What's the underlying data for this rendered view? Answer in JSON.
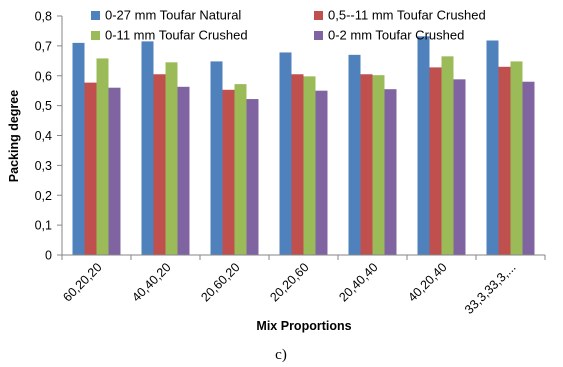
{
  "chart_data": {
    "type": "bar",
    "categories": [
      "60,20,20",
      "40,40,20",
      "20,60,20",
      "20,20,60",
      "20,40,40",
      "40,20,40",
      "33,3,33,3,..."
    ],
    "series": [
      {
        "name": "0-27 mm Toufar Natural",
        "color": "#4F81BD",
        "values": [
          0.71,
          0.715,
          0.648,
          0.678,
          0.67,
          0.732,
          0.718
        ]
      },
      {
        "name": "0,5--11 mm Toufar Crushed",
        "color": "#C0504D",
        "values": [
          0.577,
          0.605,
          0.553,
          0.605,
          0.605,
          0.628,
          0.63
        ]
      },
      {
        "name": "0-11 mm Toufar Crushed",
        "color": "#9BBB59",
        "values": [
          0.658,
          0.645,
          0.572,
          0.598,
          0.602,
          0.665,
          0.648
        ]
      },
      {
        "name": "0-2 mm Toufar Crushed",
        "color": "#8064A2",
        "values": [
          0.56,
          0.563,
          0.522,
          0.55,
          0.555,
          0.588,
          0.58
        ]
      }
    ],
    "yticks": [
      "0",
      "0,1",
      "0,2",
      "0,3",
      "0,4",
      "0,5",
      "0,6",
      "0,7",
      "0,8"
    ],
    "ylim": [
      0,
      0.8
    ],
    "xlabel": "Mix Proportions",
    "ylabel": "Packing degree",
    "legend_position": "top",
    "grid": false
  },
  "caption": "c)"
}
